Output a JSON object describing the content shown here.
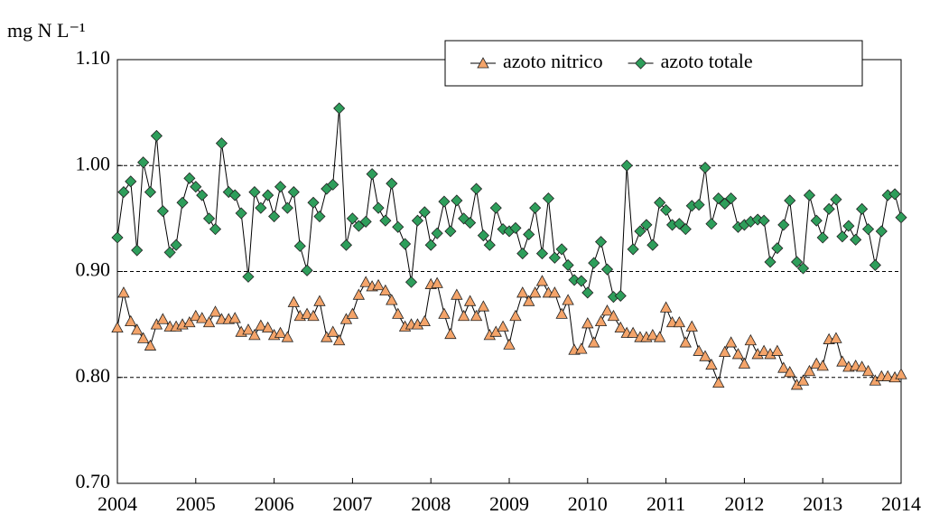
{
  "chart_data": {
    "type": "line",
    "ylabel": "mg N L⁻¹",
    "x": [
      2004.0,
      2004.08,
      2004.17,
      2004.25,
      2004.33,
      2004.42,
      2004.5,
      2004.58,
      2004.67,
      2004.75,
      2004.83,
      2004.92,
      2005.0,
      2005.08,
      2005.17,
      2005.25,
      2005.33,
      2005.42,
      2005.5,
      2005.58,
      2005.67,
      2005.75,
      2005.83,
      2005.92,
      2006.0,
      2006.08,
      2006.17,
      2006.25,
      2006.33,
      2006.42,
      2006.5,
      2006.58,
      2006.67,
      2006.75,
      2006.83,
      2006.92,
      2007.0,
      2007.08,
      2007.17,
      2007.25,
      2007.33,
      2007.42,
      2007.5,
      2007.58,
      2007.67,
      2007.75,
      2007.83,
      2007.92,
      2008.0,
      2008.08,
      2008.17,
      2008.25,
      2008.33,
      2008.42,
      2008.5,
      2008.58,
      2008.67,
      2008.75,
      2008.83,
      2008.92,
      2009.0,
      2009.08,
      2009.17,
      2009.25,
      2009.33,
      2009.42,
      2009.5,
      2009.58,
      2009.67,
      2009.75,
      2009.83,
      2009.92,
      2010.0,
      2010.08,
      2010.17,
      2010.25,
      2010.33,
      2010.42,
      2010.5,
      2010.58,
      2010.67,
      2010.75,
      2010.83,
      2010.92,
      2011.0,
      2011.08,
      2011.17,
      2011.25,
      2011.33,
      2011.42,
      2011.5,
      2011.58,
      2011.67,
      2011.75,
      2011.83,
      2011.92,
      2012.0,
      2012.08,
      2012.17,
      2012.25,
      2012.33,
      2012.42,
      2012.5,
      2012.58,
      2012.67,
      2012.75,
      2012.83,
      2012.92,
      2013.0,
      2013.08,
      2013.17,
      2013.25,
      2013.33,
      2013.42,
      2013.5,
      2013.58,
      2013.67,
      2013.75,
      2013.83,
      2013.92,
      2014.0
    ],
    "series": [
      {
        "name": "azoto nitrico",
        "color": "#f4a46a",
        "marker": "triangle",
        "values": [
          0.847,
          0.88,
          0.853,
          0.845,
          0.837,
          0.83,
          0.85,
          0.855,
          0.848,
          0.848,
          0.85,
          0.852,
          0.858,
          0.856,
          0.852,
          0.862,
          0.855,
          0.855,
          0.856,
          0.843,
          0.845,
          0.84,
          0.849,
          0.847,
          0.84,
          0.842,
          0.838,
          0.871,
          0.858,
          0.86,
          0.858,
          0.872,
          0.838,
          0.843,
          0.835,
          0.855,
          0.86,
          0.878,
          0.89,
          0.886,
          0.887,
          0.882,
          0.873,
          0.86,
          0.848,
          0.85,
          0.85,
          0.853,
          0.888,
          0.889,
          0.86,
          0.841,
          0.878,
          0.858,
          0.872,
          0.858,
          0.867,
          0.84,
          0.843,
          0.848,
          0.831,
          0.858,
          0.88,
          0.872,
          0.88,
          0.891,
          0.88,
          0.88,
          0.86,
          0.873,
          0.826,
          0.827,
          0.851,
          0.833,
          0.853,
          0.863,
          0.858,
          0.847,
          0.842,
          0.842,
          0.838,
          0.838,
          0.84,
          0.838,
          0.866,
          0.852,
          0.852,
          0.833,
          0.848,
          0.825,
          0.82,
          0.812,
          0.795,
          0.824,
          0.833,
          0.822,
          0.813,
          0.835,
          0.822,
          0.825,
          0.822,
          0.825,
          0.809,
          0.805,
          0.793,
          0.797,
          0.806,
          0.813,
          0.811,
          0.836,
          0.837,
          0.815,
          0.81,
          0.811,
          0.81,
          0.806,
          0.797,
          0.801,
          0.801,
          0.8,
          0.803
        ]
      },
      {
        "name": "azoto totale",
        "color": "#2e9e5b",
        "marker": "diamond",
        "values": [
          0.932,
          0.975,
          0.985,
          0.92,
          1.003,
          0.975,
          1.028,
          0.957,
          0.918,
          0.925,
          0.965,
          0.988,
          0.98,
          0.972,
          0.95,
          0.94,
          1.021,
          0.975,
          0.972,
          0.955,
          0.895,
          0.975,
          0.96,
          0.972,
          0.952,
          0.98,
          0.96,
          0.975,
          0.924,
          0.901,
          0.965,
          0.952,
          0.978,
          0.982,
          1.054,
          0.925,
          0.95,
          0.943,
          0.947,
          0.992,
          0.96,
          0.948,
          0.983,
          0.942,
          0.926,
          0.89,
          0.948,
          0.956,
          0.925,
          0.936,
          0.966,
          0.938,
          0.967,
          0.95,
          0.946,
          0.978,
          0.934,
          0.925,
          0.96,
          0.94,
          0.938,
          0.941,
          0.917,
          0.935,
          0.96,
          0.917,
          0.969,
          0.913,
          0.921,
          0.906,
          0.892,
          0.891,
          0.88,
          0.908,
          0.928,
          0.902,
          0.876,
          0.877,
          1.0,
          0.921,
          0.938,
          0.944,
          0.925,
          0.965,
          0.958,
          0.944,
          0.945,
          0.94,
          0.962,
          0.963,
          0.998,
          0.945,
          0.969,
          0.964,
          0.969,
          0.942,
          0.944,
          0.947,
          0.949,
          0.948,
          0.909,
          0.922,
          0.944,
          0.967,
          0.909,
          0.903,
          0.972,
          0.948,
          0.932,
          0.959,
          0.968,
          0.933,
          0.943,
          0.93,
          0.959,
          0.94,
          0.906,
          0.938,
          0.972,
          0.973,
          0.951
        ]
      }
    ],
    "xlim": [
      2004,
      2014
    ],
    "xticks": [
      2004,
      2005,
      2006,
      2007,
      2008,
      2009,
      2010,
      2011,
      2012,
      2013,
      2014
    ],
    "ylim": [
      0.7,
      1.1
    ],
    "yticks": [
      {
        "value": 0.7,
        "label": "0.70"
      },
      {
        "value": 0.8,
        "label": "0.80"
      },
      {
        "value": 0.9,
        "label": "0.90"
      },
      {
        "value": 1.0,
        "label": "1.00"
      },
      {
        "value": 1.1,
        "label": "1.10"
      }
    ],
    "grid": true,
    "legend": "upper right"
  }
}
